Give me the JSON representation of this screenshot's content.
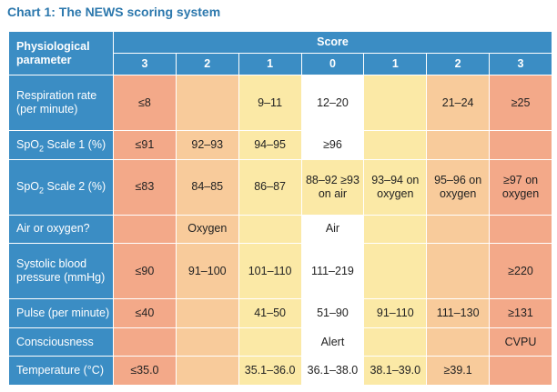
{
  "title": "Chart 1:  The NEWS scoring system",
  "header": {
    "param_label": "Physiological parameter",
    "score_label": "Score",
    "scores": [
      "3",
      "2",
      "1",
      "0",
      "1",
      "2",
      "3"
    ]
  },
  "rows": [
    {
      "param": "Respiration rate (per minute)",
      "cells": [
        "≤8",
        "",
        "9–11",
        "12–20",
        "",
        "21–24",
        "≥25"
      ]
    },
    {
      "param_pre": "SpO",
      "param_sub": "2",
      "param_post": " Scale 1 (%)",
      "cells": [
        "≤91",
        "92–93",
        "94–95",
        "≥96",
        "",
        "",
        ""
      ]
    },
    {
      "param_pre": "SpO",
      "param_sub": "2",
      "param_post": " Scale 2 (%)",
      "cells": [
        "≤83",
        "84–85",
        "86–87",
        "88–92 ≥93 on air",
        "93–94 on oxygen",
        "95–96 on oxygen",
        "≥97 on oxygen"
      ]
    },
    {
      "param": "Air or oxygen?",
      "cells": [
        "",
        "Oxygen",
        "",
        "Air",
        "",
        "",
        ""
      ]
    },
    {
      "param": "Systolic blood pressure (mmHg)",
      "cells": [
        "≤90",
        "91–100",
        "101–110",
        "111–219",
        "",
        "",
        "≥220"
      ]
    },
    {
      "param": "Pulse (per minute)",
      "cells": [
        "≤40",
        "",
        "41–50",
        "51–90",
        "91–110",
        "111–130",
        "≥131"
      ]
    },
    {
      "param": "Consciousness",
      "cells": [
        "",
        "",
        "",
        "Alert",
        "",
        "",
        "CVPU"
      ]
    },
    {
      "param": "Temperature (°C)",
      "cells": [
        "≤35.0",
        "",
        "35.1–36.0",
        "36.1–38.0",
        "38.1–39.0",
        "≥39.1",
        ""
      ]
    }
  ]
}
